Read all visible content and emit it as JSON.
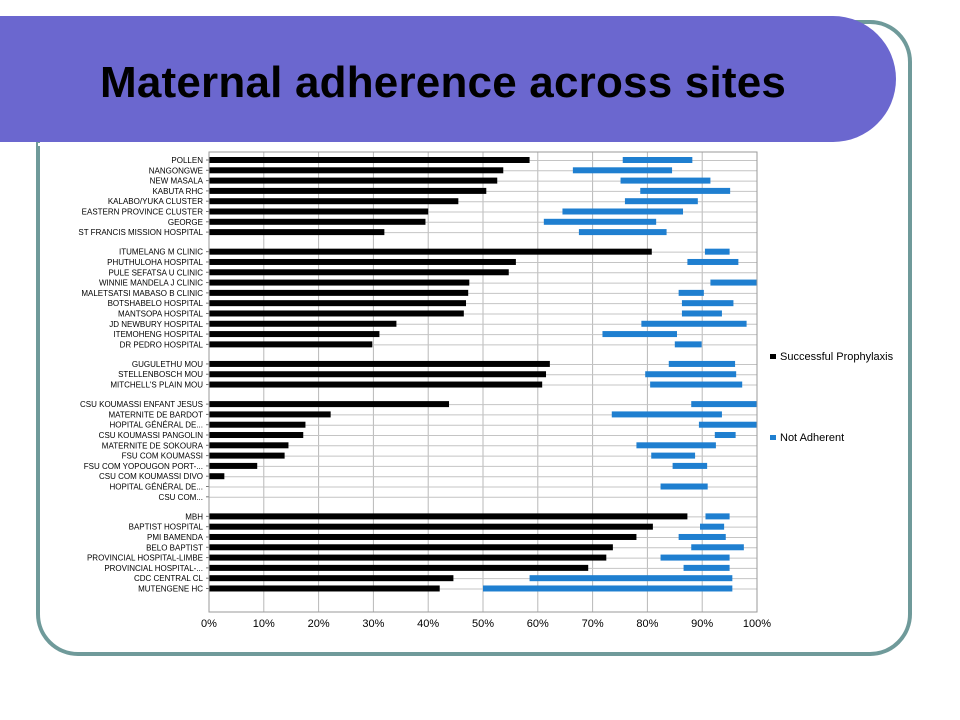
{
  "slide": {
    "title": "Maternal adherence across sites"
  },
  "colors": {
    "banner": "#6b67cf",
    "frame": "#6f9a9a",
    "successful": "#000000",
    "not_adherent": "#1f7fd0"
  },
  "chart_data": {
    "type": "bar",
    "orientation": "horizontal",
    "grid": true,
    "legend_position": "right",
    "xlim": [
      0,
      100
    ],
    "x_tick_labels": [
      "0%",
      "10%",
      "20%",
      "30%",
      "40%",
      "50%",
      "60%",
      "70%",
      "80%",
      "90%",
      "100%"
    ],
    "legend": [
      {
        "name": "Successful Prophylaxis",
        "color": "#000000"
      },
      {
        "name": "Not Adherent",
        "color": "#1f7fd0"
      }
    ],
    "groups": [
      {
        "sites": [
          {
            "label": "POLLEN",
            "successful": 58.5,
            "not_adherent": [
              75.5,
              88.2
            ]
          },
          {
            "label": "NANGONGWE",
            "successful": 53.7,
            "not_adherent": [
              66.4,
              84.5
            ]
          },
          {
            "label": "NEW MASALA",
            "successful": 52.6,
            "not_adherent": [
              75.1,
              91.5
            ]
          },
          {
            "label": "KABUTA RHC",
            "successful": 50.6,
            "not_adherent": [
              78.7,
              95.1
            ]
          },
          {
            "label": "KALABO/YUKA CLUSTER",
            "successful": 45.5,
            "not_adherent": [
              75.9,
              89.2
            ]
          },
          {
            "label": "EASTERN PROVINCE CLUSTER",
            "successful": 40.0,
            "not_adherent": [
              64.5,
              86.5
            ]
          },
          {
            "label": "GEORGE",
            "successful": 39.5,
            "not_adherent": [
              61.1,
              81.6
            ]
          },
          {
            "label": "ST FRANCIS MISSION HOSPITAL",
            "successful": 32.0,
            "not_adherent": [
              67.5,
              83.5
            ]
          }
        ]
      },
      {
        "sites": [
          {
            "label": "ITUMELANG M CLINIC",
            "successful": 80.8,
            "not_adherent": [
              90.5,
              95.0
            ]
          },
          {
            "label": "PHUTHULOHA HOSPITAL",
            "successful": 56.0,
            "not_adherent": [
              87.3,
              96.6
            ]
          },
          {
            "label": "PULE SEFATSA U CLINIC",
            "successful": 54.7,
            "not_adherent": []
          },
          {
            "label": "WINNIE MANDELA J CLINIC",
            "successful": 47.5,
            "not_adherent": [
              91.5,
              100
            ]
          },
          {
            "label": "MALETSATSI MABASO B CLINIC",
            "successful": 47.3,
            "not_adherent": [
              85.7,
              90.3
            ]
          },
          {
            "label": "BOTSHABELO HOSPITAL",
            "successful": 46.9,
            "not_adherent": [
              86.3,
              95.7
            ]
          },
          {
            "label": "MANTSOPA HOSPITAL",
            "successful": 46.5,
            "not_adherent": [
              86.3,
              93.6
            ]
          },
          {
            "label": "JD NEWBURY HOSPITAL",
            "successful": 34.2,
            "not_adherent": [
              78.9,
              98.1
            ]
          },
          {
            "label": "ITEMOHENG HOSPITAL",
            "successful": 31.1,
            "not_adherent": [
              71.8,
              85.4
            ]
          },
          {
            "label": "DR PEDRO HOSPITAL",
            "successful": 29.8,
            "not_adherent": [
              85.0,
              89.9
            ]
          }
        ]
      },
      {
        "sites": [
          {
            "label": "GUGULETHU MOU",
            "successful": 62.2,
            "not_adherent": [
              83.9,
              96.0
            ]
          },
          {
            "label": "STELLENBOSCH MOU",
            "successful": 61.5,
            "not_adherent": [
              79.6,
              96.2
            ]
          },
          {
            "label": "MITCHELL'S PLAIN MOU",
            "successful": 60.8,
            "not_adherent": [
              80.5,
              97.3
            ]
          }
        ]
      },
      {
        "sites": [
          {
            "label": "CSU KOUMASSI ENFANT JESUS",
            "successful": 43.8,
            "not_adherent": [
              88.0,
              100
            ]
          },
          {
            "label": "MATERNITE DE BARDOT",
            "successful": 22.2,
            "not_adherent": [
              73.5,
              93.6
            ]
          },
          {
            "label": "HOPITAL GÉNÉRAL DE...",
            "successful": 17.6,
            "not_adherent": [
              89.4,
              100
            ]
          },
          {
            "label": "CSU KOUMASSI PANGOLIN",
            "successful": 17.2,
            "not_adherent": [
              92.3,
              96.1
            ]
          },
          {
            "label": "MATERNITE DE SOKOURA",
            "successful": 14.5,
            "not_adherent": [
              78.0,
              92.5
            ]
          },
          {
            "label": "FSU COM KOUMASSI",
            "successful": 13.8,
            "not_adherent": [
              80.7,
              88.7
            ]
          },
          {
            "label": "FSU COM YOPOUGON PORT-...",
            "successful": 8.8,
            "not_adherent": [
              84.6,
              90.9
            ]
          },
          {
            "label": "CSU COM KOUMASSI DIVO",
            "successful": 2.8,
            "not_adherent": []
          },
          {
            "label": "HOPITAL GÉNÉRAL DE...",
            "successful": 0,
            "not_adherent": [
              82.4,
              91.0
            ]
          },
          {
            "label": "CSU COM...",
            "successful": 0,
            "not_adherent": []
          }
        ]
      },
      {
        "sites": [
          {
            "label": "MBH",
            "successful": 87.3,
            "not_adherent": [
              90.6,
              95.0
            ]
          },
          {
            "label": "BAPTIST HOSPITAL",
            "successful": 81.0,
            "not_adherent": [
              89.6,
              94.0
            ]
          },
          {
            "label": "PMI BAMENDA",
            "successful": 78.0,
            "not_adherent": [
              85.7,
              94.3
            ]
          },
          {
            "label": "BELO BAPTIST",
            "successful": 73.7,
            "not_adherent": [
              88.0,
              97.6
            ]
          },
          {
            "label": "PROVINCIAL HOSPITAL-LIMBE",
            "successful": 72.5,
            "not_adherent": [
              82.4,
              95.0
            ]
          },
          {
            "label": "PROVINCIAL HOSPITAL-...",
            "successful": 69.2,
            "not_adherent": [
              86.6,
              95.0
            ]
          },
          {
            "label": "CDC CENTRAL CL",
            "successful": 44.6,
            "not_adherent": [
              58.5,
              95.5
            ]
          },
          {
            "label": "MUTENGENE HC",
            "successful": 42.1,
            "not_adherent": [
              50.0,
              95.5
            ]
          }
        ]
      }
    ]
  }
}
